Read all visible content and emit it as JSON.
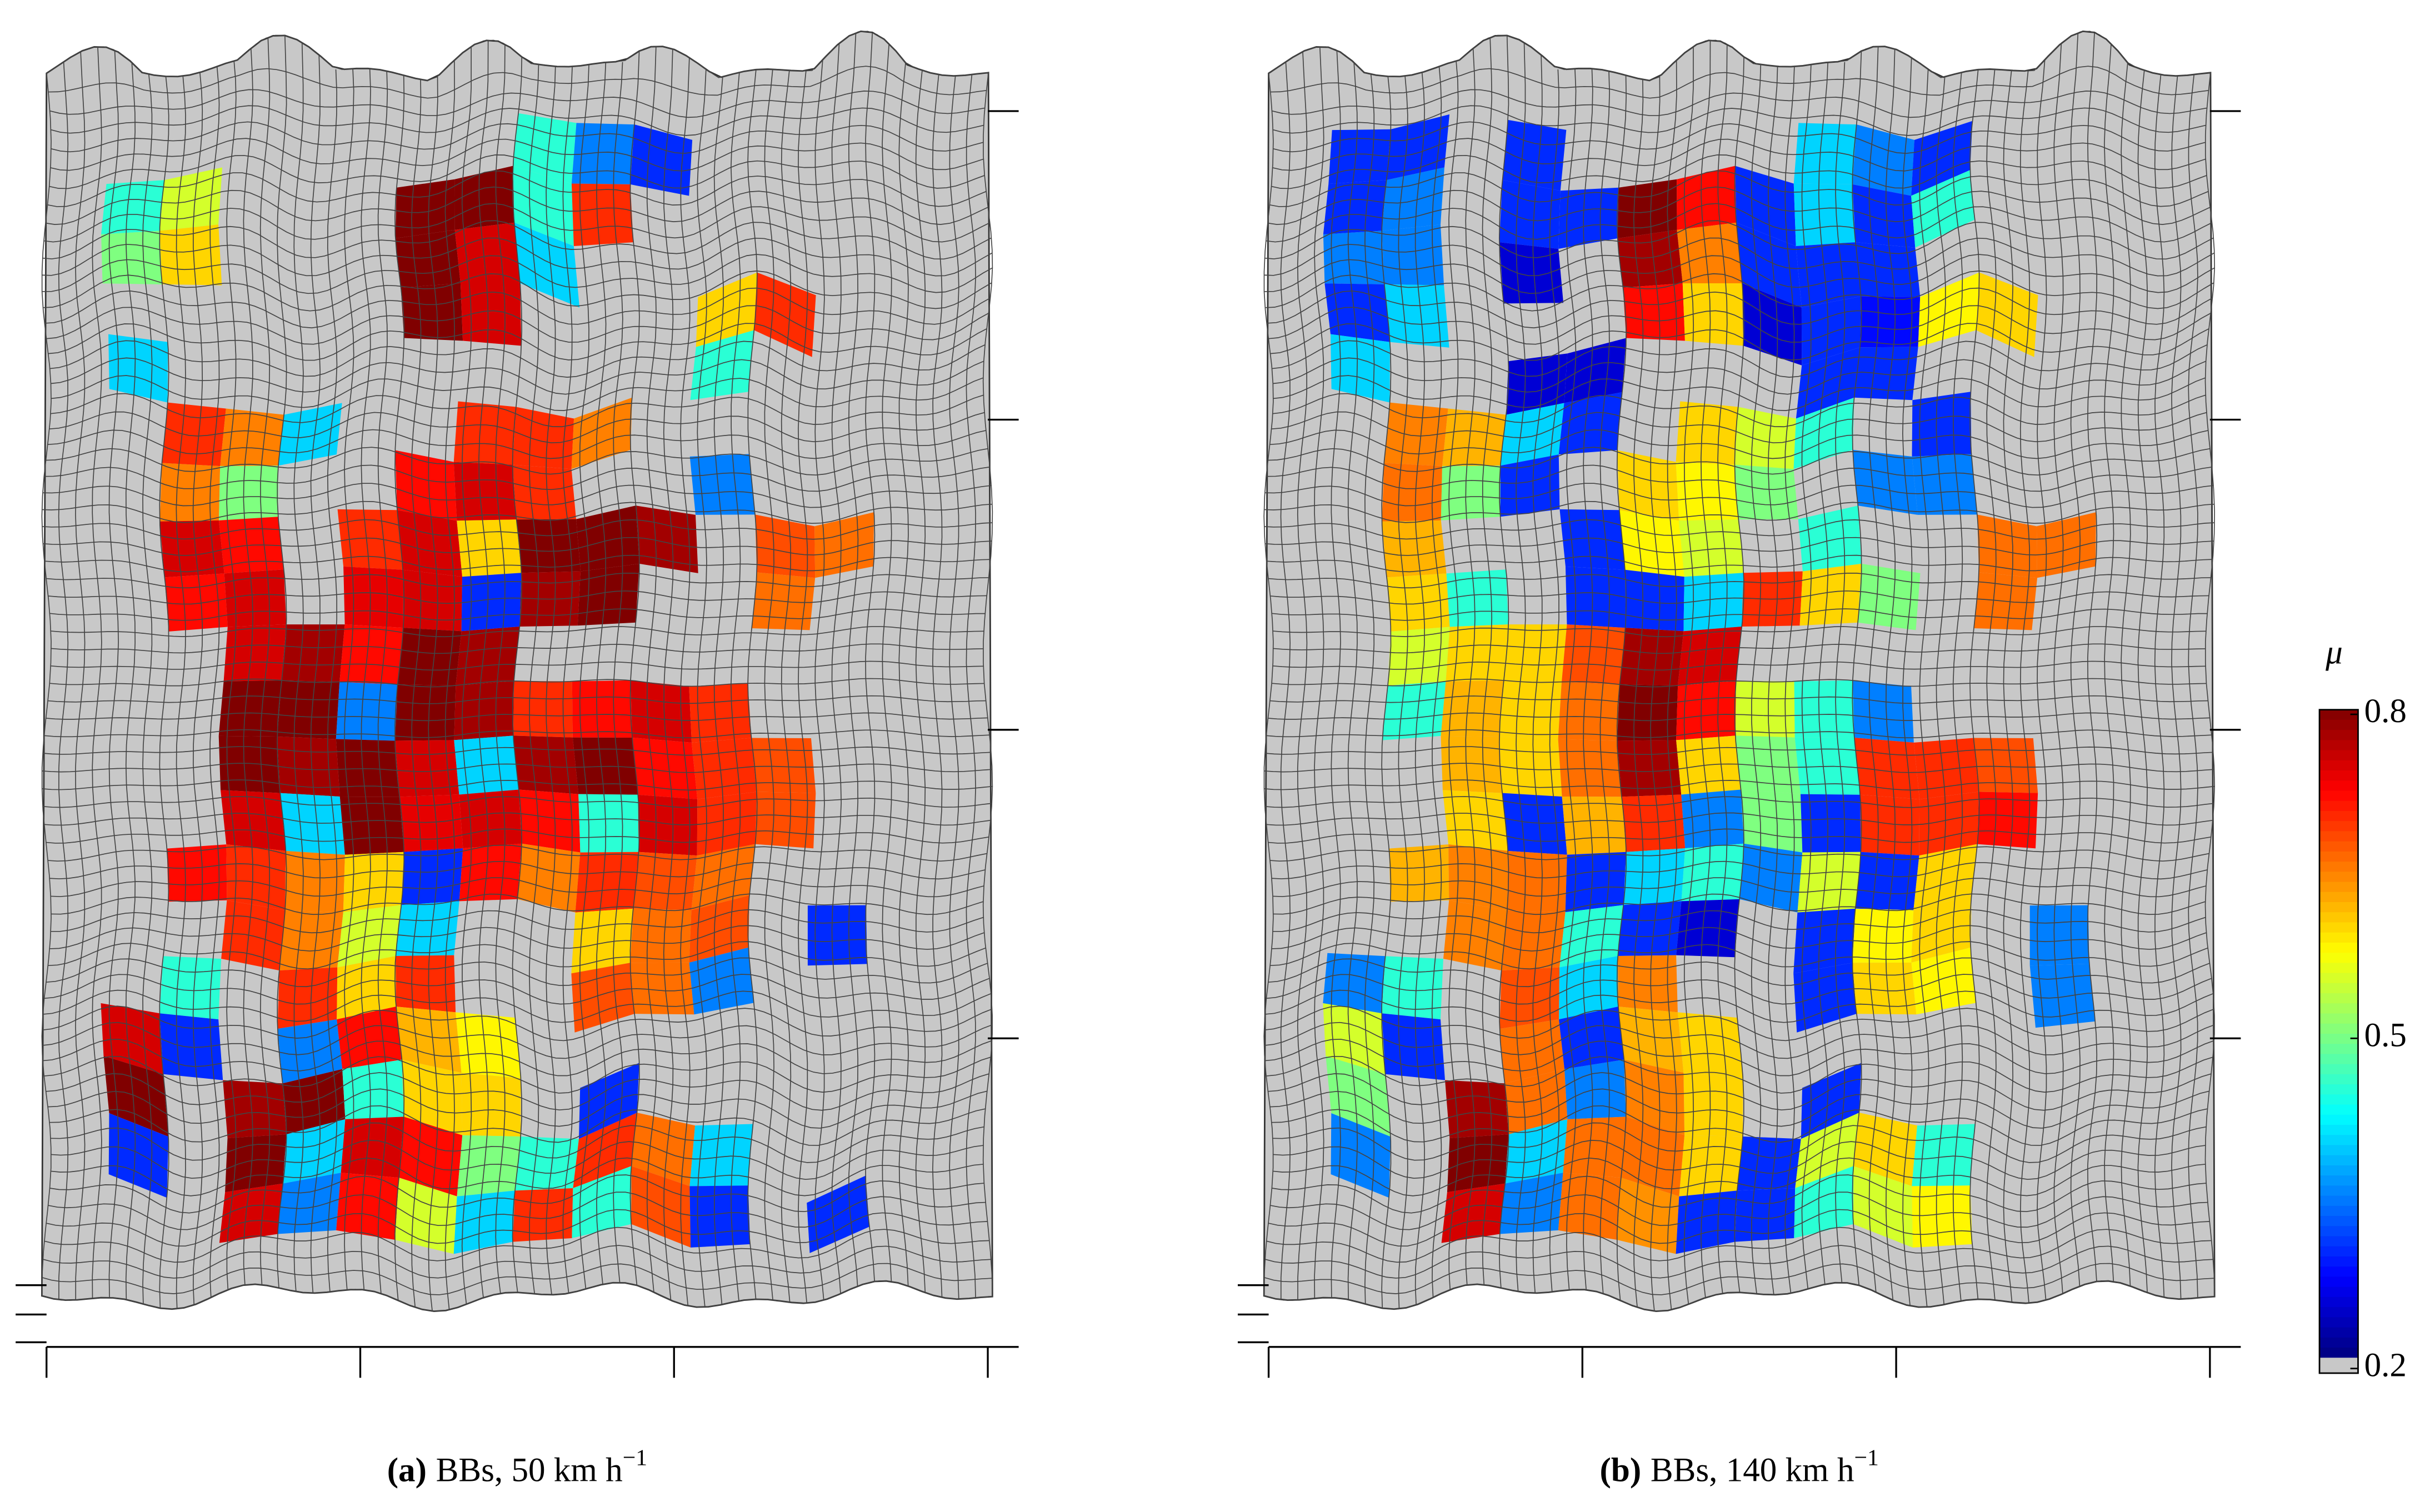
{
  "chart_data": [
    {
      "type": "heatmap",
      "caption_label": "(a)",
      "caption": "BBs, 50 km h",
      "caption_exp": "−1",
      "values": [
        [
          null,
          null,
          null,
          null,
          null,
          null,
          null,
          null,
          null,
          null,
          null,
          null,
          null,
          null,
          null,
          null
        ],
        [
          null,
          null,
          null,
          null,
          null,
          null,
          null,
          null,
          0.45,
          0.35,
          0.3,
          null,
          null,
          null,
          null,
          null
        ],
        [
          null,
          0.45,
          0.55,
          null,
          null,
          null,
          0.8,
          0.8,
          0.45,
          0.7,
          null,
          null,
          null,
          null,
          null,
          null
        ],
        [
          null,
          0.5,
          0.6,
          null,
          null,
          null,
          0.8,
          0.75,
          0.4,
          null,
          null,
          null,
          null,
          null,
          null,
          null
        ],
        [
          null,
          null,
          null,
          null,
          null,
          null,
          0.8,
          0.75,
          null,
          null,
          null,
          0.6,
          0.7,
          null,
          null,
          null
        ],
        [
          null,
          0.4,
          null,
          null,
          null,
          null,
          null,
          null,
          null,
          null,
          null,
          0.45,
          null,
          null,
          null,
          null
        ],
        [
          null,
          null,
          0.7,
          0.65,
          0.4,
          null,
          null,
          0.7,
          0.7,
          0.65,
          null,
          null,
          null,
          null,
          null,
          null
        ],
        [
          null,
          null,
          0.65,
          0.5,
          null,
          null,
          0.72,
          0.75,
          0.7,
          null,
          null,
          0.35,
          null,
          null,
          null,
          null
        ],
        [
          null,
          null,
          0.75,
          0.72,
          null,
          0.7,
          0.75,
          0.6,
          0.8,
          0.8,
          0.78,
          null,
          0.68,
          0.66,
          null,
          null
        ],
        [
          null,
          null,
          0.72,
          0.75,
          null,
          0.74,
          0.75,
          0.3,
          0.78,
          0.8,
          null,
          null,
          0.66,
          null,
          null,
          null
        ],
        [
          null,
          null,
          null,
          0.75,
          0.78,
          0.72,
          0.8,
          0.78,
          null,
          null,
          null,
          null,
          null,
          null,
          null,
          null
        ],
        [
          null,
          null,
          null,
          0.8,
          0.8,
          0.35,
          0.8,
          0.78,
          0.7,
          0.72,
          0.75,
          0.7,
          null,
          null,
          null,
          null
        ],
        [
          null,
          null,
          null,
          0.8,
          0.78,
          0.8,
          0.75,
          0.4,
          0.78,
          0.8,
          0.72,
          0.7,
          0.68,
          null,
          null,
          null
        ],
        [
          null,
          null,
          null,
          0.75,
          0.4,
          0.8,
          0.74,
          0.75,
          0.72,
          0.45,
          0.75,
          0.7,
          0.68,
          null,
          null,
          null
        ],
        [
          null,
          null,
          0.72,
          0.7,
          0.65,
          0.6,
          0.3,
          0.72,
          0.65,
          0.7,
          0.68,
          0.66,
          null,
          null,
          null,
          null
        ],
        [
          null,
          null,
          null,
          0.7,
          0.65,
          0.55,
          0.4,
          null,
          null,
          0.6,
          0.66,
          0.68,
          null,
          0.3,
          null,
          null
        ],
        [
          null,
          null,
          0.45,
          null,
          0.7,
          0.6,
          0.7,
          null,
          null,
          0.68,
          0.66,
          0.35,
          null,
          null,
          null,
          null
        ],
        [
          null,
          0.75,
          0.3,
          null,
          0.35,
          0.72,
          0.62,
          0.58,
          null,
          null,
          null,
          null,
          null,
          null,
          null,
          null
        ],
        [
          null,
          0.8,
          null,
          0.78,
          0.8,
          0.45,
          0.6,
          0.6,
          null,
          0.3,
          null,
          null,
          null,
          null,
          null,
          null
        ],
        [
          null,
          0.3,
          null,
          0.8,
          0.4,
          0.75,
          0.72,
          0.5,
          0.45,
          0.7,
          0.66,
          0.4,
          null,
          null,
          null,
          null
        ],
        [
          null,
          null,
          null,
          0.75,
          0.35,
          0.72,
          0.55,
          0.4,
          0.7,
          0.45,
          0.68,
          0.3,
          null,
          0.3,
          null,
          null
        ],
        [
          null,
          null,
          null,
          null,
          null,
          null,
          null,
          null,
          null,
          null,
          null,
          null,
          null,
          null,
          null,
          null
        ]
      ]
    },
    {
      "type": "heatmap",
      "caption_label": "(b)",
      "caption": "BBs, 140 km h",
      "caption_exp": "−1",
      "values": [
        [
          null,
          null,
          null,
          null,
          null,
          null,
          null,
          null,
          null,
          null,
          null,
          null,
          null,
          null,
          null,
          null
        ],
        [
          null,
          0.3,
          0.3,
          null,
          0.3,
          null,
          null,
          null,
          null,
          0.4,
          0.35,
          0.3,
          null,
          null,
          null,
          null
        ],
        [
          null,
          0.3,
          0.35,
          null,
          0.3,
          0.3,
          0.8,
          0.72,
          0.3,
          0.4,
          0.3,
          0.45,
          null,
          null,
          null,
          null
        ],
        [
          null,
          0.35,
          0.35,
          null,
          0.25,
          null,
          0.78,
          0.65,
          0.3,
          0.3,
          0.3,
          null,
          null,
          null,
          null,
          null
        ],
        [
          null,
          0.3,
          0.4,
          null,
          null,
          null,
          0.72,
          0.6,
          0.25,
          0.3,
          0.28,
          0.58,
          0.6,
          null,
          null,
          null
        ],
        [
          null,
          0.4,
          null,
          null,
          0.25,
          0.25,
          null,
          null,
          null,
          0.3,
          0.3,
          null,
          null,
          null,
          null,
          null
        ],
        [
          null,
          null,
          0.65,
          0.62,
          0.4,
          0.3,
          null,
          0.6,
          0.55,
          0.45,
          null,
          0.3,
          null,
          null,
          null,
          null
        ],
        [
          null,
          null,
          0.66,
          0.5,
          0.3,
          null,
          0.6,
          0.58,
          0.5,
          null,
          0.35,
          0.35,
          null,
          null,
          null,
          null
        ],
        [
          null,
          null,
          0.62,
          null,
          null,
          0.3,
          0.58,
          0.55,
          null,
          0.45,
          null,
          null,
          0.66,
          0.66,
          null,
          null
        ],
        [
          null,
          null,
          0.6,
          0.45,
          null,
          0.3,
          0.3,
          0.4,
          0.7,
          0.6,
          0.5,
          null,
          0.66,
          null,
          null,
          null
        ],
        [
          null,
          null,
          0.55,
          0.6,
          0.6,
          0.68,
          0.78,
          0.75,
          null,
          null,
          null,
          null,
          null,
          null,
          null,
          null
        ],
        [
          null,
          null,
          0.45,
          0.62,
          0.6,
          0.66,
          0.8,
          0.72,
          0.55,
          0.45,
          0.35,
          null,
          null,
          null,
          null,
          null
        ],
        [
          null,
          null,
          null,
          0.62,
          0.6,
          0.66,
          0.78,
          0.6,
          0.5,
          0.45,
          0.7,
          0.7,
          0.68,
          null,
          null,
          null
        ],
        [
          null,
          null,
          null,
          0.6,
          0.3,
          0.62,
          0.7,
          0.35,
          0.5,
          0.3,
          0.7,
          0.7,
          0.72,
          null,
          null,
          null
        ],
        [
          null,
          null,
          0.62,
          0.65,
          0.66,
          0.3,
          0.4,
          0.45,
          0.35,
          0.55,
          0.3,
          0.6,
          null,
          null,
          null,
          null
        ],
        [
          null,
          null,
          null,
          0.65,
          0.66,
          0.45,
          0.3,
          0.25,
          null,
          0.3,
          0.58,
          0.6,
          null,
          0.35,
          null,
          null
        ],
        [
          null,
          0.35,
          0.45,
          null,
          0.68,
          0.4,
          0.65,
          null,
          null,
          0.3,
          0.6,
          0.58,
          null,
          0.35,
          null,
          null
        ],
        [
          null,
          0.55,
          0.3,
          null,
          0.66,
          0.3,
          0.62,
          0.6,
          null,
          null,
          null,
          null,
          null,
          null,
          null,
          null
        ],
        [
          null,
          0.5,
          null,
          0.78,
          0.66,
          0.35,
          0.65,
          0.6,
          null,
          0.3,
          null,
          null,
          null,
          null,
          null,
          null
        ],
        [
          null,
          0.35,
          null,
          0.8,
          0.4,
          0.66,
          0.66,
          0.6,
          0.3,
          0.55,
          0.6,
          0.45,
          null,
          null,
          null,
          null
        ],
        [
          null,
          null,
          null,
          0.75,
          0.35,
          0.66,
          0.64,
          0.3,
          0.3,
          0.45,
          0.55,
          0.58,
          null,
          null,
          null,
          null
        ],
        [
          null,
          null,
          null,
          null,
          null,
          null,
          null,
          null,
          null,
          null,
          null,
          null,
          null,
          null,
          null,
          null
        ]
      ]
    }
  ],
  "colorbar": {
    "label": "μ",
    "colormap": "jet",
    "clim": [
      0.2,
      0.8
    ],
    "ticks": [
      0.2,
      0.5,
      0.8
    ]
  }
}
